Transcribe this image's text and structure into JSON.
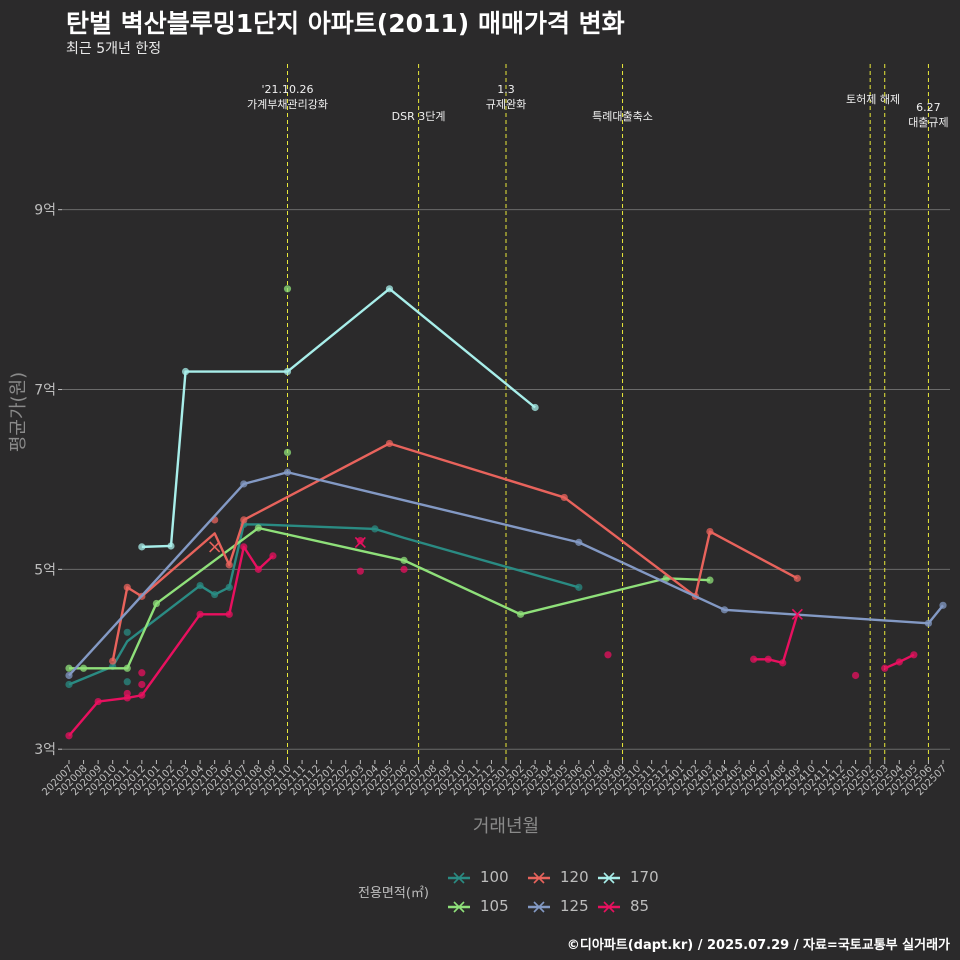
{
  "title": "탄벌 벽산블루밍1단지 아파트(2011) 매매가격 변화",
  "subtitle": "최근 5개년 한정",
  "caption": "©디아파트(dapt.kr) / 2025.07.29 / 자료=국토교통부 실거래가",
  "legend": {
    "title": "전용면적(㎡)",
    "items": [
      {
        "label": "100",
        "color": "#2a8b83"
      },
      {
        "label": "120",
        "color": "#e8635c"
      },
      {
        "label": "170",
        "color": "#a8eeea"
      },
      {
        "label": "105",
        "color": "#8fe07a"
      },
      {
        "label": "125",
        "color": "#8399c4"
      },
      {
        "label": "85",
        "color": "#e8105f"
      }
    ]
  },
  "chart_data": {
    "type": "line",
    "xlabel": "거래년월",
    "ylabel": "평균가(원)",
    "x_categories": [
      "202007",
      "202008",
      "202009",
      "202010",
      "202011",
      "202012",
      "202101",
      "202102",
      "202103",
      "202104",
      "202105",
      "202106",
      "202107",
      "202108",
      "202109",
      "202110",
      "202111",
      "202112",
      "202201",
      "202202",
      "202203",
      "202204",
      "202205",
      "202206",
      "202207",
      "202208",
      "202209",
      "202210",
      "202211",
      "202212",
      "202301",
      "202302",
      "202303",
      "202304",
      "202305",
      "202306",
      "202307",
      "202308",
      "202309",
      "202310",
      "202311",
      "202312",
      "202401",
      "202402",
      "202403",
      "202404",
      "202405",
      "202406",
      "202407",
      "202408",
      "202409",
      "202410",
      "202411",
      "202412",
      "202501",
      "202502",
      "202503",
      "202504",
      "202505",
      "202506",
      "202507"
    ],
    "y_ticks": [
      {
        "value": 3,
        "label": "3억"
      },
      {
        "value": 5,
        "label": "5억"
      },
      {
        "value": 7,
        "label": "7억"
      },
      {
        "value": 9,
        "label": "9억"
      }
    ],
    "ylim": [
      2.88,
      10.62
    ],
    "grid": true,
    "legend_position": "bottom",
    "annotations": [
      {
        "x": "202110",
        "lines": [
          "'21.10.26",
          "가계부채관리강화"
        ],
        "row": "top"
      },
      {
        "x": "202207",
        "lines": [
          "DSR 3단계"
        ],
        "row": "low"
      },
      {
        "x": "202301",
        "lines": [
          "1.3",
          "규제완화"
        ],
        "row": "top"
      },
      {
        "x": "202309",
        "lines": [
          "특례대출축소"
        ],
        "row": "low"
      },
      {
        "x": "202502",
        "lines": [
          "토허제 해제"
        ],
        "row": "mid",
        "align": "left"
      },
      {
        "x": "202503",
        "lines": [],
        "row": "none"
      },
      {
        "x": "202506",
        "lines": [
          "6.27",
          "대출규제"
        ],
        "row": "top2"
      }
    ],
    "series": [
      {
        "name": "100",
        "color": "#2a8b83",
        "line": [
          [
            "202007",
            3.72
          ],
          [
            "202010",
            3.92
          ],
          [
            "202011",
            4.2
          ],
          [
            "202104",
            4.82
          ],
          [
            "202105",
            4.72
          ],
          [
            "202106",
            4.8
          ],
          [
            "202107",
            5.5
          ],
          [
            "202108",
            5.5
          ],
          [
            "202204",
            5.45
          ],
          [
            "202206",
            5.35
          ],
          [
            "202306",
            4.8
          ]
        ],
        "points": [
          [
            "202007",
            3.72
          ],
          [
            "202010",
            3.92
          ],
          [
            "202011",
            4.3
          ],
          [
            "202011",
            3.75
          ],
          [
            "202104",
            4.82
          ],
          [
            "202105",
            4.72
          ],
          [
            "202106",
            4.8
          ],
          [
            "202107",
            5.5
          ],
          [
            "202204",
            5.45
          ],
          [
            "202306",
            4.8
          ]
        ]
      },
      {
        "name": "105",
        "color": "#8fe07a",
        "line": [
          [
            "202007",
            3.9
          ],
          [
            "202008",
            3.9
          ],
          [
            "202011",
            3.9
          ],
          [
            "202101",
            4.62
          ],
          [
            "202108",
            5.46
          ],
          [
            "202206",
            5.1
          ],
          [
            "202302",
            4.5
          ],
          [
            "202312",
            4.9
          ],
          [
            "202403",
            4.88
          ]
        ],
        "points": [
          [
            "202007",
            3.9
          ],
          [
            "202008",
            3.9
          ],
          [
            "202011",
            3.9
          ],
          [
            "202101",
            4.62
          ],
          [
            "202108",
            5.46
          ],
          [
            "202110",
            6.3
          ],
          [
            "202110",
            8.12
          ],
          [
            "202206",
            5.1
          ],
          [
            "202302",
            4.5
          ],
          [
            "202312",
            4.9
          ],
          [
            "202403",
            4.88
          ]
        ]
      },
      {
        "name": "120",
        "color": "#e8635c",
        "line": [
          [
            "202010",
            3.98
          ],
          [
            "202011",
            4.8
          ],
          [
            "202012",
            4.7
          ],
          [
            "202105",
            5.4
          ],
          [
            "202106",
            5.05
          ],
          [
            "202107",
            5.55
          ],
          [
            "202205",
            6.4
          ],
          [
            "202305",
            5.8
          ],
          [
            "202402",
            4.7
          ],
          [
            "202403",
            5.42
          ],
          [
            "202409",
            4.9
          ]
        ],
        "points": [
          [
            "202010",
            3.98
          ],
          [
            "202011",
            4.8
          ],
          [
            "202012",
            4.7
          ],
          [
            "202105",
            5.55
          ],
          [
            "202106",
            5.05
          ],
          [
            "202107",
            5.55
          ],
          [
            "202205",
            6.4
          ],
          [
            "202305",
            5.8
          ],
          [
            "202402",
            4.7
          ],
          [
            "202403",
            5.42
          ],
          [
            "202409",
            4.9
          ]
        ],
        "crosses": [
          [
            "202105",
            5.25
          ]
        ]
      },
      {
        "name": "125",
        "color": "#8399c4",
        "line": [
          [
            "202007",
            3.82
          ],
          [
            "202107",
            5.95
          ],
          [
            "202110",
            6.08
          ],
          [
            "202306",
            5.3
          ],
          [
            "202404",
            4.55
          ],
          [
            "202506",
            4.4
          ],
          [
            "202507",
            4.6
          ]
        ],
        "points": [
          [
            "202007",
            3.82
          ],
          [
            "202107",
            5.95
          ],
          [
            "202110",
            6.08
          ],
          [
            "202306",
            5.3
          ],
          [
            "202404",
            4.55
          ],
          [
            "202506",
            4.4
          ],
          [
            "202507",
            4.6
          ]
        ]
      },
      {
        "name": "170",
        "color": "#a8eeea",
        "line": [
          [
            "202012",
            5.25
          ],
          [
            "202102",
            5.26
          ],
          [
            "202103",
            7.2
          ],
          [
            "202110",
            7.2
          ],
          [
            "202205",
            8.12
          ],
          [
            "202303",
            6.8
          ]
        ],
        "points": [
          [
            "202012",
            5.25
          ],
          [
            "202102",
            5.26
          ],
          [
            "202103",
            7.2
          ],
          [
            "202110",
            7.2
          ],
          [
            "202205",
            8.12
          ],
          [
            "202303",
            6.8
          ]
        ]
      },
      {
        "name": "85",
        "color": "#e8105f",
        "line": [
          [
            "202007",
            3.15
          ],
          [
            "202009",
            3.53
          ],
          [
            "202011",
            3.57
          ],
          [
            "202012",
            3.6
          ],
          [
            "202104",
            4.5
          ],
          [
            "202106",
            4.5
          ],
          [
            "202107",
            5.25
          ],
          [
            "202108",
            5.0
          ],
          [
            "202109",
            5.15
          ]
        ],
        "points": [
          [
            "202007",
            3.15
          ],
          [
            "202009",
            3.53
          ],
          [
            "202011",
            3.57
          ],
          [
            "202011",
            3.62
          ],
          [
            "202012",
            3.6
          ],
          [
            "202012",
            3.72
          ],
          [
            "202012",
            3.85
          ],
          [
            "202104",
            4.5
          ],
          [
            "202106",
            4.5
          ],
          [
            "202107",
            5.25
          ],
          [
            "202108",
            5.0
          ],
          [
            "202109",
            5.15
          ],
          [
            "202203",
            4.98
          ],
          [
            "202203",
            5.32
          ],
          [
            "202206",
            5.0
          ],
          [
            "202308",
            4.05
          ],
          [
            "202406",
            4.0
          ],
          [
            "202407",
            4.0
          ],
          [
            "202408",
            3.96
          ],
          [
            "202501",
            3.82
          ],
          [
            "202503",
            3.9
          ],
          [
            "202504",
            3.97
          ],
          [
            "202505",
            4.05
          ]
        ],
        "line2": [
          [
            "202406",
            4.0
          ],
          [
            "202407",
            4.0
          ],
          [
            "202408",
            3.96
          ],
          [
            "202409",
            4.5
          ]
        ],
        "line3": [
          [
            "202503",
            3.9
          ],
          [
            "202504",
            3.97
          ],
          [
            "202505",
            4.05
          ]
        ],
        "crosses": [
          [
            "202203",
            5.3
          ],
          [
            "202409",
            4.5
          ]
        ]
      }
    ]
  }
}
